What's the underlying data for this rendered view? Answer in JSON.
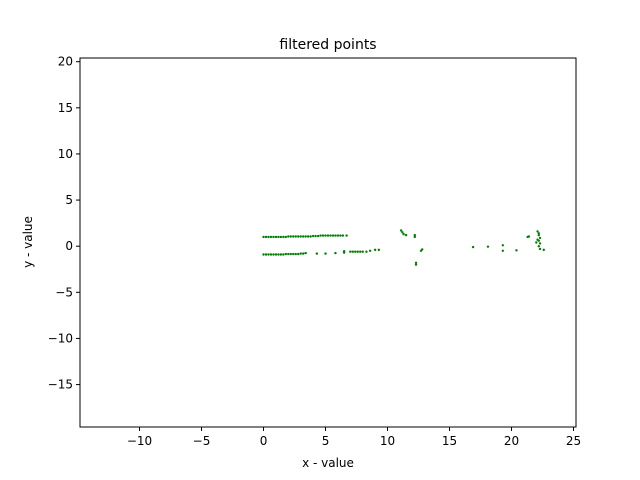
{
  "chart_data": {
    "type": "scatter",
    "title": "filtered points",
    "xlabel": "x - value",
    "ylabel": "y - value",
    "xlim": [
      -14.8,
      25.2
    ],
    "ylim": [
      -19.6,
      20.4
    ],
    "xticks": [
      -10,
      -5,
      0,
      5,
      10,
      15,
      20,
      25
    ],
    "yticks": [
      -15,
      -10,
      -5,
      0,
      5,
      10,
      15,
      20
    ],
    "grid": false,
    "marker_color": "#008000",
    "series": [
      {
        "points": [
          [
            0.0,
            1.0
          ],
          [
            0.2,
            1.0
          ],
          [
            0.4,
            1.0
          ],
          [
            0.6,
            1.0
          ],
          [
            0.8,
            1.0
          ],
          [
            1.0,
            1.0
          ],
          [
            1.2,
            1.0
          ],
          [
            1.4,
            1.0
          ],
          [
            1.6,
            1.0
          ],
          [
            1.8,
            1.0
          ],
          [
            2.0,
            1.05
          ],
          [
            2.2,
            1.05
          ],
          [
            2.4,
            1.05
          ],
          [
            2.6,
            1.05
          ],
          [
            2.8,
            1.05
          ],
          [
            3.0,
            1.05
          ],
          [
            3.2,
            1.05
          ],
          [
            3.4,
            1.05
          ],
          [
            3.6,
            1.05
          ],
          [
            3.8,
            1.05
          ],
          [
            4.0,
            1.1
          ],
          [
            4.2,
            1.1
          ],
          [
            4.4,
            1.1
          ],
          [
            4.6,
            1.15
          ],
          [
            4.8,
            1.15
          ],
          [
            5.0,
            1.15
          ],
          [
            5.2,
            1.15
          ],
          [
            5.4,
            1.15
          ],
          [
            5.6,
            1.15
          ],
          [
            5.8,
            1.15
          ],
          [
            6.0,
            1.15
          ],
          [
            6.2,
            1.15
          ],
          [
            6.4,
            1.15
          ],
          [
            6.7,
            1.15
          ],
          [
            0.0,
            -0.9
          ],
          [
            0.2,
            -0.9
          ],
          [
            0.4,
            -0.9
          ],
          [
            0.6,
            -0.9
          ],
          [
            0.8,
            -0.9
          ],
          [
            1.0,
            -0.9
          ],
          [
            1.2,
            -0.9
          ],
          [
            1.4,
            -0.9
          ],
          [
            1.6,
            -0.9
          ],
          [
            1.8,
            -0.85
          ],
          [
            2.0,
            -0.85
          ],
          [
            2.2,
            -0.85
          ],
          [
            2.4,
            -0.85
          ],
          [
            2.6,
            -0.85
          ],
          [
            2.8,
            -0.85
          ],
          [
            3.0,
            -0.8
          ],
          [
            3.2,
            -0.8
          ],
          [
            3.4,
            -0.75
          ],
          [
            4.3,
            -0.8
          ],
          [
            5.0,
            -0.8
          ],
          [
            5.8,
            -0.75
          ],
          [
            6.5,
            -0.7
          ],
          [
            6.5,
            -0.55
          ],
          [
            7.0,
            -0.6
          ],
          [
            7.2,
            -0.6
          ],
          [
            7.4,
            -0.6
          ],
          [
            7.6,
            -0.6
          ],
          [
            7.8,
            -0.6
          ],
          [
            8.0,
            -0.6
          ],
          [
            8.3,
            -0.6
          ],
          [
            8.6,
            -0.5
          ],
          [
            9.0,
            -0.4
          ],
          [
            9.3,
            -0.4
          ],
          [
            11.1,
            1.7
          ],
          [
            11.2,
            1.5
          ],
          [
            11.3,
            1.3
          ],
          [
            11.5,
            1.2
          ],
          [
            12.2,
            1.2
          ],
          [
            12.2,
            1.0
          ],
          [
            12.3,
            -1.8
          ],
          [
            12.3,
            -2.0
          ],
          [
            12.7,
            -0.5
          ],
          [
            12.8,
            -0.35
          ],
          [
            16.9,
            -0.1
          ],
          [
            18.1,
            -0.05
          ],
          [
            19.3,
            0.1
          ],
          [
            19.3,
            -0.5
          ],
          [
            20.4,
            -0.45
          ],
          [
            21.3,
            1.0
          ],
          [
            21.4,
            1.05
          ],
          [
            22.1,
            1.6
          ],
          [
            22.2,
            1.4
          ],
          [
            22.2,
            1.2
          ],
          [
            22.3,
            0.9
          ],
          [
            22.2,
            0.6
          ],
          [
            22.3,
            0.3
          ],
          [
            22.2,
            0.0
          ],
          [
            22.3,
            -0.3
          ],
          [
            22.6,
            -0.4
          ],
          [
            22.0,
            0.4
          ],
          [
            22.1,
            0.7
          ]
        ]
      }
    ]
  }
}
